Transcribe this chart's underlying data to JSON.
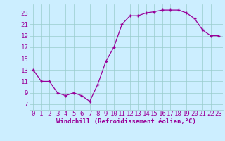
{
  "x": [
    0,
    1,
    2,
    3,
    4,
    5,
    6,
    7,
    8,
    9,
    10,
    11,
    12,
    13,
    14,
    15,
    16,
    17,
    18,
    19,
    20,
    21,
    22,
    23
  ],
  "y": [
    13,
    11,
    11,
    9,
    8.5,
    9,
    8.5,
    7.5,
    10.5,
    14.5,
    17,
    21,
    22.5,
    22.5,
    23,
    23.2,
    23.5,
    23.5,
    23.5,
    23,
    22,
    20,
    19,
    19
  ],
  "line_color": "#990099",
  "marker": "+",
  "bg_color": "#cceeff",
  "grid_color": "#99cccc",
  "xlabel": "Windchill (Refroidissement éolien,°C)",
  "yticks": [
    7,
    9,
    11,
    13,
    15,
    17,
    19,
    21,
    23
  ],
  "xticks": [
    0,
    1,
    2,
    3,
    4,
    5,
    6,
    7,
    8,
    9,
    10,
    11,
    12,
    13,
    14,
    15,
    16,
    17,
    18,
    19,
    20,
    21,
    22,
    23
  ],
  "ylim": [
    6.0,
    24.5
  ],
  "xlim": [
    -0.5,
    23.5
  ],
  "tick_color": "#990099",
  "label_color": "#990099",
  "label_fontsize": 6.5,
  "tick_fontsize": 6.5,
  "line_width": 0.9,
  "marker_size": 3
}
